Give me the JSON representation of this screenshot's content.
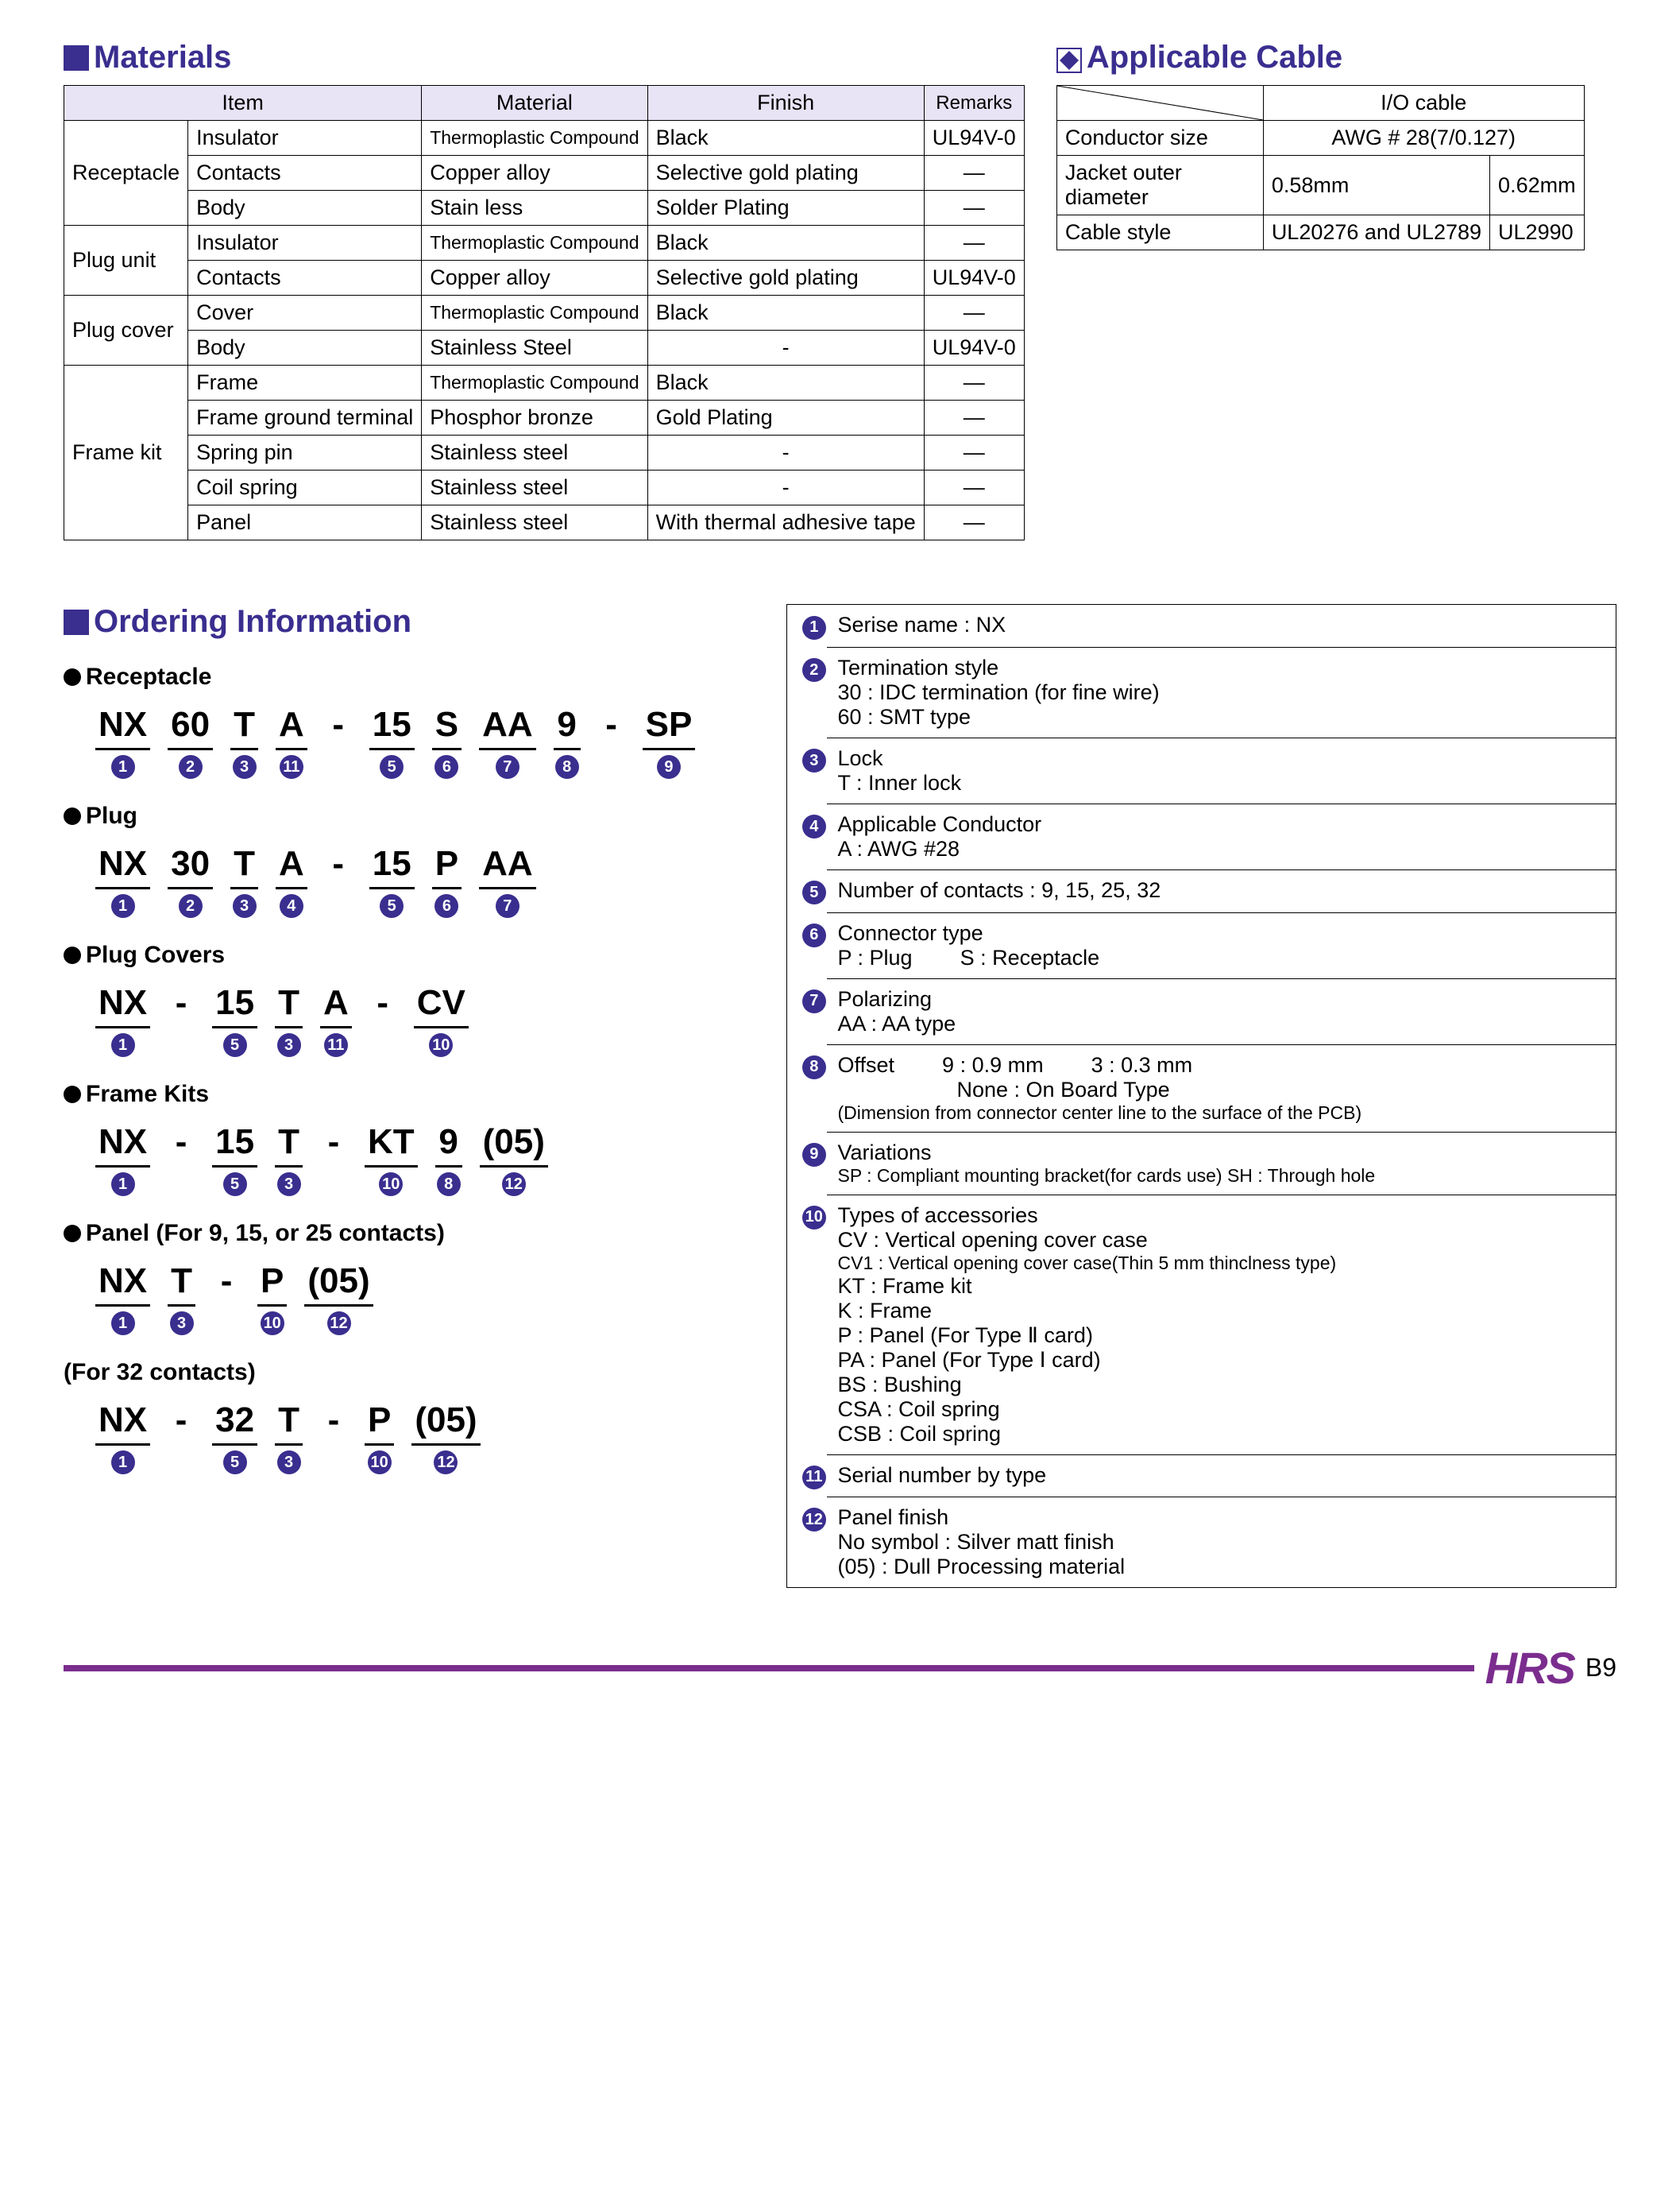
{
  "colors": {
    "heading": "#3a2e8f",
    "accent": "#7b2d8e",
    "headerbg": "#e8e3f5",
    "border": "#000000"
  },
  "materials": {
    "title": "Materials",
    "headers": [
      "Item",
      "Material",
      "Finish",
      "Remarks"
    ],
    "groups": [
      {
        "name": "Receptacle",
        "rows": [
          {
            "item": "Insulator",
            "material": "Thermoplastic Compound",
            "material_small": true,
            "finish": "Black",
            "remarks": "UL94V-0"
          },
          {
            "item": "Contacts",
            "material": "Copper alloy",
            "finish": "Selective gold plating",
            "remarks": "—"
          },
          {
            "item": "Body",
            "material": "Stain less",
            "finish": "Solder Plating",
            "remarks": "—"
          }
        ]
      },
      {
        "name": "Plug unit",
        "rows": [
          {
            "item": "Insulator",
            "material": "Thermoplastic Compound",
            "material_small": true,
            "finish": "Black",
            "remarks": "—"
          },
          {
            "item": "Contacts",
            "material": "Copper alloy",
            "finish": "Selective gold plating",
            "remarks": "UL94V-0"
          }
        ]
      },
      {
        "name": "Plug cover",
        "rows": [
          {
            "item": "Cover",
            "material": "Thermoplastic Compound",
            "material_small": true,
            "finish": "Black",
            "remarks": "—"
          },
          {
            "item": "Body",
            "material": "Stainless Steel",
            "finish": "-",
            "finish_center": true,
            "remarks": "UL94V-0"
          }
        ]
      },
      {
        "name": "Frame kit",
        "rows": [
          {
            "item": "Frame",
            "material": "Thermoplastic Compound",
            "material_small": true,
            "finish": "Black",
            "remarks": "—"
          },
          {
            "item": "Frame ground terminal",
            "material": "Phosphor bronze",
            "finish": "Gold Plating",
            "remarks": "—"
          },
          {
            "item": "Spring pin",
            "material": "Stainless steel",
            "finish": "-",
            "finish_center": true,
            "remarks": "—"
          },
          {
            "item": "Coil spring",
            "material": "Stainless steel",
            "finish": "-",
            "finish_center": true,
            "remarks": "—"
          },
          {
            "item": "Panel",
            "material": "Stainless steel",
            "finish": "With thermal adhesive tape",
            "remarks": "—"
          }
        ]
      }
    ]
  },
  "cable": {
    "title": "Applicable Cable",
    "header": "I/O cable",
    "rows": [
      {
        "label": "Conductor size",
        "span": true,
        "value": "AWG # 28(7/0.127)"
      },
      {
        "label": "Jacket outer diameter",
        "v1": "0.58mm",
        "v2": "0.62mm"
      },
      {
        "label": "Cable style",
        "v1": "UL20276 and UL2789",
        "v2": "UL2990"
      }
    ]
  },
  "ordering": {
    "title": "Ordering Information",
    "sections": [
      {
        "label": "Receptacle",
        "dot": true,
        "segments": [
          {
            "t": "NX",
            "n": 1
          },
          {
            "t": "60",
            "n": 2
          },
          {
            "t": "T",
            "n": 3
          },
          {
            "t": "A",
            "n": 11
          },
          {
            "t": "-",
            "dash": true
          },
          {
            "t": "15",
            "n": 5
          },
          {
            "t": "S",
            "n": 6
          },
          {
            "t": "AA",
            "n": 7
          },
          {
            "t": "9",
            "n": 8
          },
          {
            "t": "-",
            "dash": true
          },
          {
            "t": "SP",
            "n": 9
          }
        ]
      },
      {
        "label": "Plug",
        "dot": true,
        "segments": [
          {
            "t": "NX",
            "n": 1
          },
          {
            "t": "30",
            "n": 2
          },
          {
            "t": "T",
            "n": 3
          },
          {
            "t": "A",
            "n": 4
          },
          {
            "t": "-",
            "dash": true
          },
          {
            "t": "15",
            "n": 5
          },
          {
            "t": "P",
            "n": 6
          },
          {
            "t": "AA",
            "n": 7
          }
        ]
      },
      {
        "label": "Plug Covers",
        "dot": true,
        "segments": [
          {
            "t": "NX",
            "n": 1
          },
          {
            "t": "-",
            "dash": true
          },
          {
            "t": "15",
            "n": 5
          },
          {
            "t": "T",
            "n": 3
          },
          {
            "t": "A",
            "n": 11
          },
          {
            "t": "-",
            "dash": true
          },
          {
            "t": "CV",
            "n": 10
          }
        ]
      },
      {
        "label": "Frame Kits",
        "dot": true,
        "segments": [
          {
            "t": "NX",
            "n": 1
          },
          {
            "t": "-",
            "dash": true
          },
          {
            "t": "15",
            "n": 5
          },
          {
            "t": "T",
            "n": 3
          },
          {
            "t": "-",
            "dash": true
          },
          {
            "t": "KT",
            "n": 10
          },
          {
            "t": "9",
            "n": 8
          },
          {
            "t": "(05)",
            "n": 12
          }
        ]
      },
      {
        "label": "Panel (For 9, 15, or 25 contacts)",
        "dot": true,
        "segments": [
          {
            "t": "NX",
            "n": 1
          },
          {
            "t": "T",
            "n": 3
          },
          {
            "t": "-",
            "dash": true
          },
          {
            "t": "P",
            "n": 10
          },
          {
            "t": "(05)",
            "n": 12
          }
        ]
      },
      {
        "label": "(For 32 contacts)",
        "dot": false,
        "segments": [
          {
            "t": "NX",
            "n": 1
          },
          {
            "t": "-",
            "dash": true
          },
          {
            "t": "32",
            "n": 5
          },
          {
            "t": "T",
            "n": 3
          },
          {
            "t": "-",
            "dash": true
          },
          {
            "t": "P",
            "n": 10
          },
          {
            "t": "(05)",
            "n": 12
          }
        ]
      }
    ],
    "legend": [
      {
        "n": 1,
        "lines": [
          "Serise name : NX"
        ]
      },
      {
        "n": 2,
        "lines": [
          "Termination style",
          "30 : IDC termination (for fine wire)",
          "60 : SMT type"
        ]
      },
      {
        "n": 3,
        "lines": [
          "Lock",
          "T : Inner lock"
        ]
      },
      {
        "n": 4,
        "lines": [
          "Applicable Conductor",
          "A : AWG  #28"
        ]
      },
      {
        "n": 5,
        "lines": [
          "Number of contacts : 9, 15, 25, 32"
        ]
      },
      {
        "n": 6,
        "lines": [
          "Connector type"
        ],
        "inline": [
          "P : Plug",
          "S : Receptacle"
        ]
      },
      {
        "n": 7,
        "lines": [
          "Polarizing",
          "AA : AA  type"
        ]
      },
      {
        "n": 8,
        "lines": [],
        "inline_first": [
          "Offset",
          "9 : 0.9 mm",
          "3 : 0.3 mm"
        ],
        "sub": [
          "None : On Board Type"
        ],
        "small": "(Dimension from connector center line to the surface of the PCB)"
      },
      {
        "n": 9,
        "lines": [
          "Variations"
        ],
        "small": "SP : Compliant mounting bracket(for cards use)   SH : Through hole"
      },
      {
        "n": 10,
        "lines": [
          "Types of accessories",
          "CV : Vertical opening cover case"
        ],
        "small_line": "CV1 : Vertical opening cover case(Thin 5 mm thinclness type)",
        "more": [
          "KT : Frame kit",
          "K : Frame",
          "P : Panel (For Type Ⅱ card)",
          "PA : Panel (For Type Ⅰ card)",
          "BS : Bushing",
          "CSA : Coil spring",
          "CSB : Coil spring"
        ]
      },
      {
        "n": 11,
        "lines": [
          "Serial number by type"
        ]
      },
      {
        "n": 12,
        "lines": [
          "Panel finish",
          "No symbol : Silver matt finish",
          "(05) : Dull Processing material"
        ]
      }
    ]
  },
  "footer": {
    "logo": "HRS",
    "page": "B9"
  }
}
